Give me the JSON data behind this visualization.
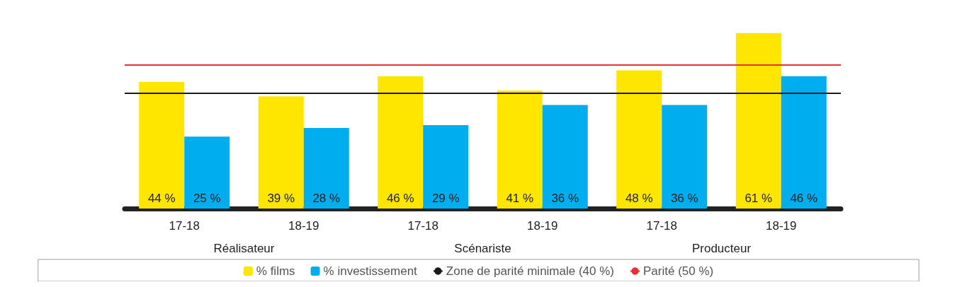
{
  "chart_data": {
    "type": "bar",
    "categories": [
      "17-18",
      "18-19",
      "17-18",
      "18-19",
      "17-18",
      "18-19"
    ],
    "series": [
      {
        "name": "% films",
        "color": "#ffe600",
        "values": [
          44,
          39,
          46,
          41,
          48,
          61
        ],
        "value_labels": [
          "44 %",
          "39 %",
          "46 %",
          "41 %",
          "48 %",
          "61 %"
        ]
      },
      {
        "name": "% investissement",
        "color": "#00aeef",
        "values": [
          25,
          28,
          29,
          36,
          36,
          46
        ],
        "value_labels": [
          "25 %",
          "28 %",
          "29 %",
          "36 %",
          "36 %",
          "46 %"
        ]
      }
    ],
    "ref_lines": [
      {
        "axis": "y",
        "value": 40,
        "label": "Zone de parité minimale (40 %)",
        "color": "#1a1a1a"
      },
      {
        "axis": "y",
        "value": 50,
        "label": "Parité (50 %)",
        "color": "#e8303a"
      }
    ],
    "annotations": [
      "Réalisateur",
      "Scénariste",
      "Producteur"
    ],
    "legend": "bottom",
    "tick_labels": "x"
  }
}
